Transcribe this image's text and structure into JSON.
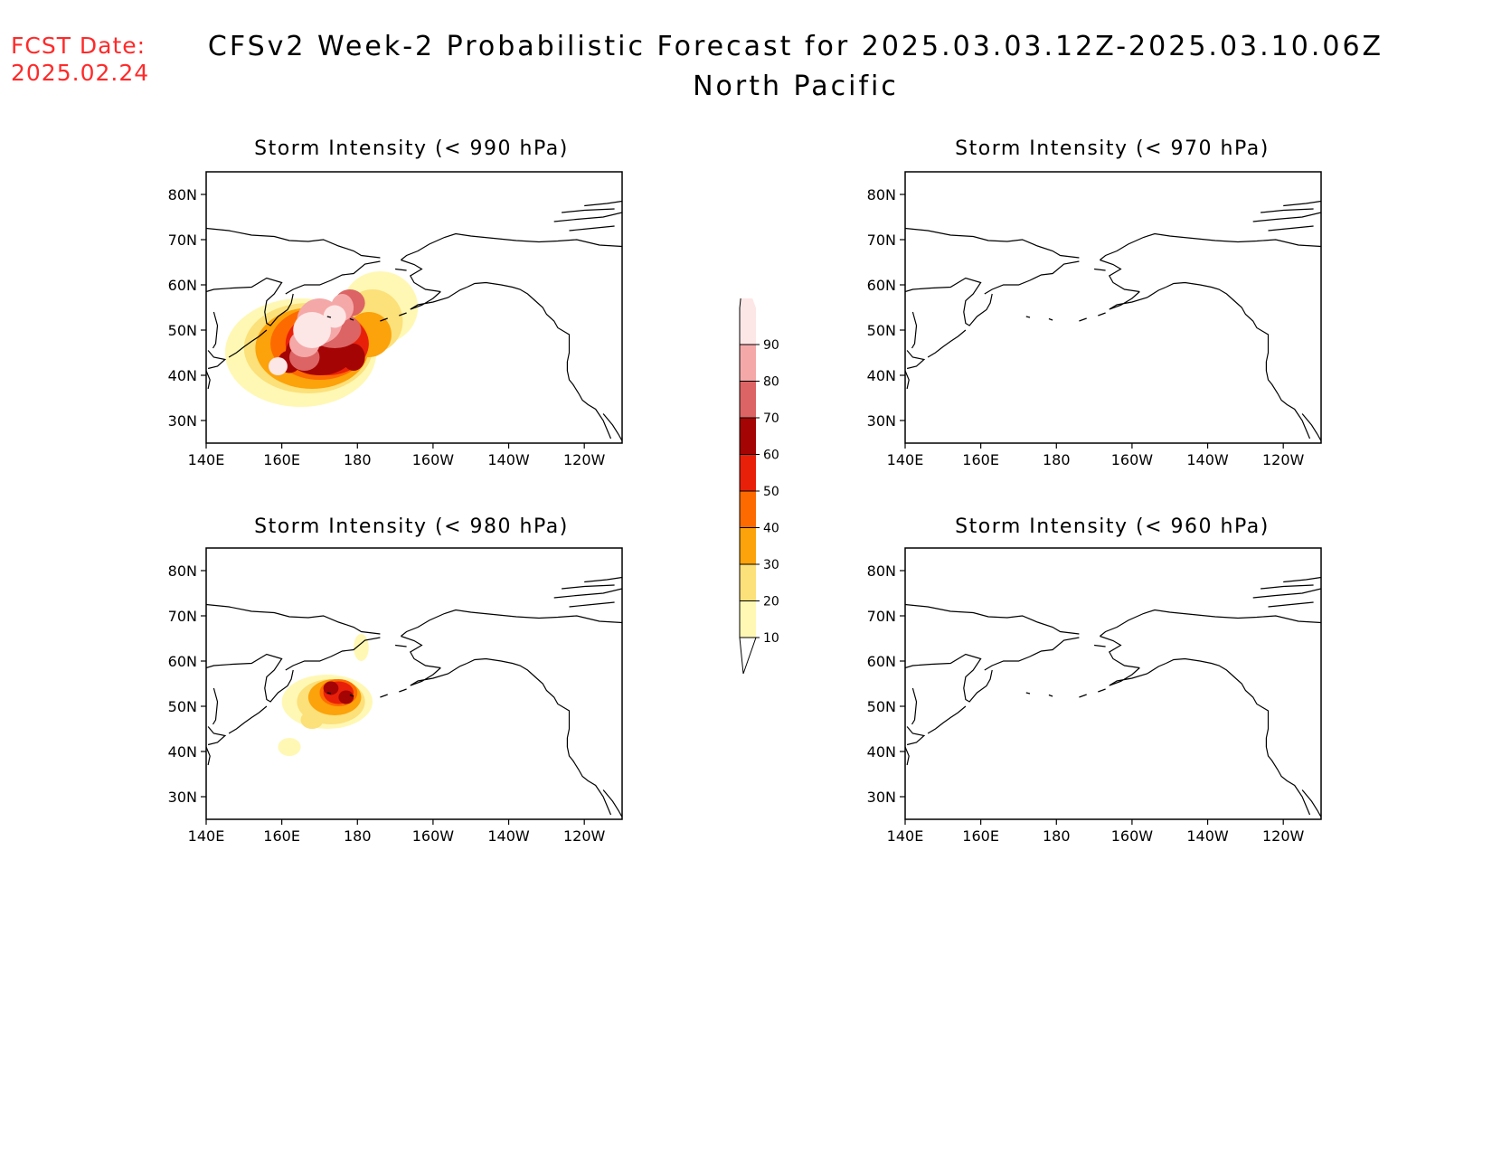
{
  "header": {
    "fcst_label": "FCST Date:",
    "fcst_date": "2025.02.24",
    "title_line1": "CFSv2 Week-2 Probabilistic Forecast for 2025.03.03.12Z-2025.03.10.06Z",
    "title_line2": "North Pacific"
  },
  "panels": [
    {
      "id": "p990",
      "title": "Storm Intensity (< 990 hPa)"
    },
    {
      "id": "p970",
      "title": "Storm Intensity (< 970 hPa)"
    },
    {
      "id": "p980",
      "title": "Storm Intensity (< 980 hPa)"
    },
    {
      "id": "p960",
      "title": "Storm Intensity (< 960 hPa)"
    }
  ],
  "axes": {
    "lat_ticks": [
      "80N",
      "70N",
      "60N",
      "50N",
      "40N",
      "30N"
    ],
    "lon_ticks": [
      "140E",
      "160E",
      "180",
      "160W",
      "140W",
      "120W"
    ]
  },
  "colorbar": {
    "levels": [
      "10",
      "20",
      "30",
      "40",
      "50",
      "60",
      "70",
      "80",
      "90"
    ],
    "colors": [
      "#fff8b4",
      "#fce07a",
      "#fca20a",
      "#fd6a00",
      "#e8200a",
      "#a40404",
      "#dc6464",
      "#f5a8a8",
      "#fde6e6"
    ]
  }
}
